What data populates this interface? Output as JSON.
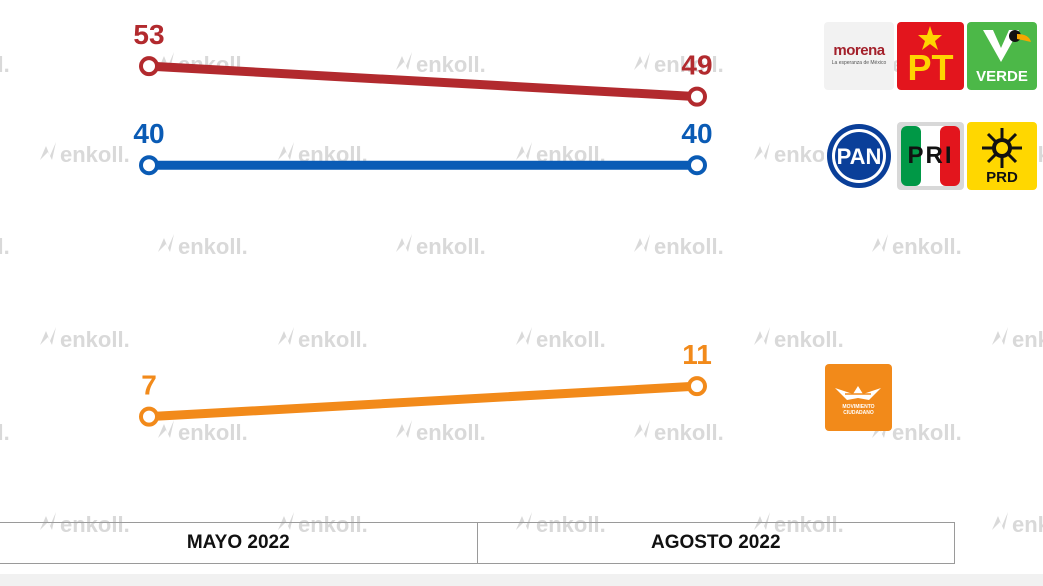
{
  "watermark": {
    "text": "enkoll.",
    "color": "#d9d9d9"
  },
  "chart_data": {
    "type": "line",
    "categories": [
      "MAYO 2022",
      "AGOSTO 2022"
    ],
    "ylim": [
      0,
      60
    ],
    "grid": false,
    "legend": "right",
    "series": [
      {
        "values": [
          53,
          49
        ],
        "color": "#b22a2e"
      },
      {
        "values": [
          40,
          40
        ],
        "color": "#0a5bb5"
      },
      {
        "values": [
          7,
          11
        ],
        "color": "#f28a1a"
      }
    ]
  },
  "logos": {
    "morena": {
      "name": "morena",
      "tagline": "La esperanza de México",
      "color": "#a3202b"
    },
    "pt": {
      "text": "PT",
      "color": "#e3151d",
      "star_color": "#ffd400"
    },
    "verde": {
      "text": "VERDE",
      "color": "#4cb848"
    },
    "pan": {
      "text": "PAN",
      "color": "#0a3f99"
    },
    "pri": {
      "text": "PRI",
      "colors": [
        "#009846",
        "#ffffff",
        "#e3151d"
      ]
    },
    "prd": {
      "text": "PRD",
      "color": "#ffd700"
    },
    "mc": {
      "text": "MOVIMIENTO CIUDADANO",
      "color": "#f28a1a"
    }
  }
}
